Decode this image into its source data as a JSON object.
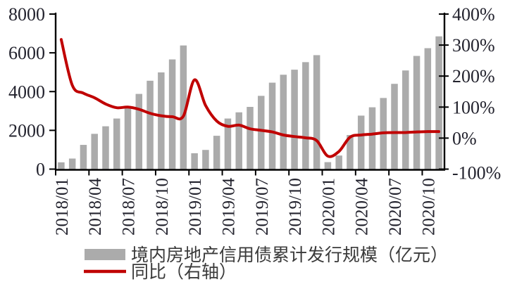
{
  "colors": {
    "bar": "#ABABAB",
    "line": "#C00000",
    "axis": "#000000",
    "tick_text": "#23232e",
    "legend_text": "#3A3A3A",
    "background": "#FFFFFF"
  },
  "chart_data": {
    "type": "combo",
    "title": "",
    "grid": false,
    "legend_position": "bottom",
    "categories": [
      "2018/01",
      "2018/02",
      "2018/03",
      "2018/04",
      "2018/05",
      "2018/06",
      "2018/07",
      "2018/08",
      "2018/09",
      "2018/10",
      "2018/11",
      "2018/12",
      "2019/01",
      "2019/02",
      "2019/03",
      "2019/04",
      "2019/05",
      "2019/06",
      "2019/07",
      "2019/08",
      "2019/09",
      "2019/10",
      "2019/11",
      "2019/12",
      "2020/01",
      "2020/02",
      "2020/03",
      "2020/04",
      "2020/05",
      "2020/06",
      "2020/07",
      "2020/08",
      "2020/09",
      "2020/10",
      "2020/11"
    ],
    "series": [
      {
        "name": "境内房地产信用债累计发行规模（亿元）",
        "type": "bar",
        "axis": "left",
        "color": "#ABABAB",
        "values": [
          350,
          545,
          1250,
          1820,
          2210,
          2610,
          3250,
          3880,
          4560,
          4990,
          5660,
          6380,
          820,
          990,
          1720,
          2610,
          2930,
          3210,
          3780,
          4460,
          4870,
          5130,
          5520,
          5880,
          360,
          700,
          1760,
          2760,
          3190,
          3670,
          4400,
          5090,
          5840,
          6240,
          6850
        ]
      },
      {
        "name": "同比（右轴）",
        "type": "line",
        "axis": "right",
        "color": "#C00000",
        "values": [
          318,
          170,
          145,
          130,
          110,
          98,
          100,
          93,
          80,
          72,
          69,
          71,
          188,
          105,
          55,
          38,
          42,
          30,
          25,
          20,
          10,
          5,
          1,
          -8,
          -58,
          -43,
          3,
          10,
          13,
          17,
          18,
          18,
          20,
          21,
          21
        ]
      }
    ],
    "left_axis": {
      "min": 0,
      "max": 8000,
      "tick_step": 2000,
      "tick_labels": [
        "0",
        "2000",
        "4000",
        "6000",
        "8000"
      ]
    },
    "right_axis": {
      "min": -100,
      "max": 400,
      "tick_step": 100,
      "tick_labels": [
        "-100%",
        "0%",
        "100%",
        "200%",
        "300%",
        "400%"
      ]
    },
    "x_axis": {
      "label_every": 3,
      "tick_labels": [
        "2018/01",
        "2018/04",
        "2018/07",
        "2018/10",
        "2019/01",
        "2019/04",
        "2019/07",
        "2019/10",
        "2020/01",
        "2020/04",
        "2020/07",
        "2020/10"
      ]
    },
    "legend": [
      {
        "label": "境内房地产信用债累计发行规模（亿元）",
        "swatch": "bar",
        "color": "#ABABAB"
      },
      {
        "label": "同比（右轴）",
        "swatch": "line",
        "color": "#C00000"
      }
    ]
  }
}
